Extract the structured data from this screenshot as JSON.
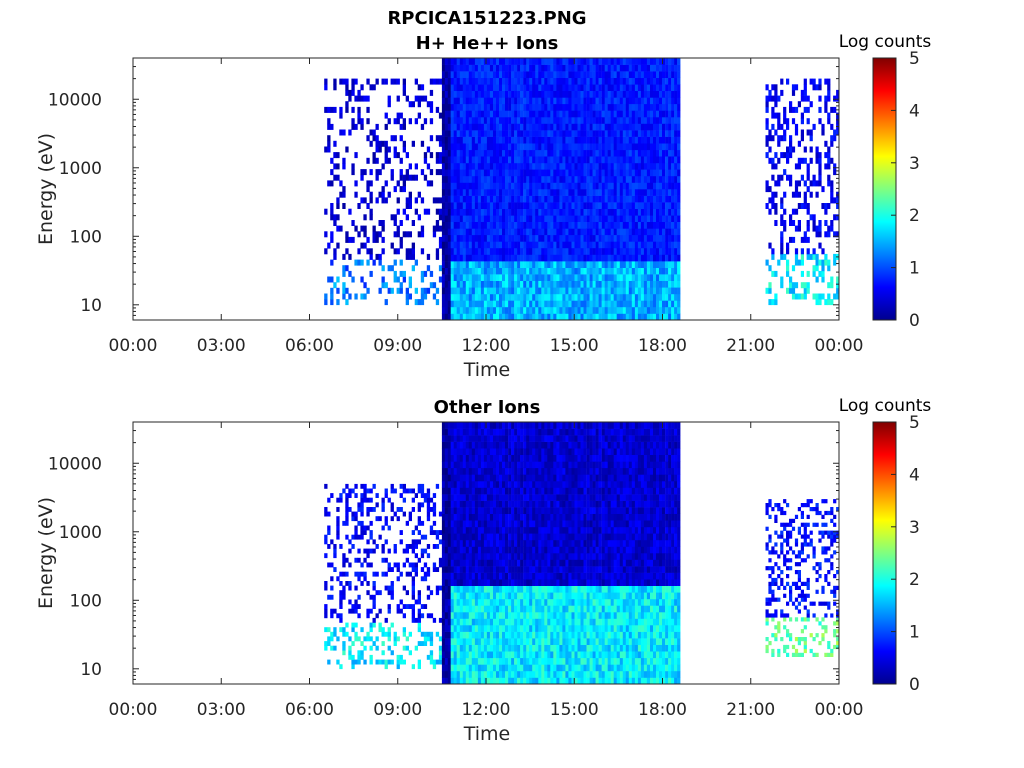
{
  "figure_title": "RPCICA151223.PNG",
  "chart_data": [
    {
      "type": "heatmap",
      "title": "H+ He++ Ions",
      "xlabel": "Time",
      "ylabel": "Energy (eV)",
      "x_ticks": [
        "00:00",
        "03:00",
        "06:00",
        "09:00",
        "12:00",
        "15:00",
        "18:00",
        "21:00",
        "00:00"
      ],
      "x_range_hours": [
        0,
        24
      ],
      "y_scale": "log",
      "y_range_eV": [
        6,
        40000
      ],
      "y_ticks": [
        10,
        100,
        1000,
        10000
      ],
      "y_tick_labels": [
        "10",
        "100",
        "1000",
        "10000"
      ],
      "colorbar": {
        "title": "Log counts",
        "range": [
          0,
          5
        ],
        "ticks": [
          "0",
          "1",
          "2",
          "3",
          "4",
          "5"
        ],
        "colormap": "jet"
      },
      "segments": [
        {
          "start_h": 6.5,
          "end_h": 10.5,
          "level": 0.4,
          "density": 0.28,
          "e_min": 10,
          "e_max": 20000,
          "low_e_max": 50,
          "low_level": 1.2
        },
        {
          "start_h": 10.5,
          "end_h": 10.8,
          "level": 0.2,
          "density": 1.0,
          "e_min": 6,
          "e_max": 40000,
          "low_e_max": 0,
          "low_level": 0
        },
        {
          "start_h": 10.8,
          "end_h": 18.6,
          "level": 0.75,
          "density": 1.0,
          "e_min": 6,
          "e_max": 40000,
          "low_e_max": 45,
          "low_level": 1.5
        },
        {
          "start_h": 21.5,
          "end_h": 24.0,
          "level": 0.55,
          "density": 0.35,
          "e_min": 10,
          "e_max": 20000,
          "low_e_max": 60,
          "low_level": 1.8
        }
      ]
    },
    {
      "type": "heatmap",
      "title": "Other Ions",
      "xlabel": "Time",
      "ylabel": "Energy (eV)",
      "x_ticks": [
        "00:00",
        "03:00",
        "06:00",
        "09:00",
        "12:00",
        "15:00",
        "18:00",
        "21:00",
        "00:00"
      ],
      "x_range_hours": [
        0,
        24
      ],
      "y_scale": "log",
      "y_range_eV": [
        6,
        40000
      ],
      "y_ticks": [
        10,
        100,
        1000,
        10000
      ],
      "y_tick_labels": [
        "10",
        "100",
        "1000",
        "10000"
      ],
      "colorbar": {
        "title": "Log counts",
        "range": [
          0,
          5
        ],
        "ticks": [
          "0",
          "1",
          "2",
          "3",
          "4",
          "5"
        ],
        "colormap": "jet"
      },
      "segments": [
        {
          "start_h": 6.5,
          "end_h": 10.5,
          "level": 0.6,
          "density": 0.3,
          "e_min": 10,
          "e_max": 5000,
          "low_e_max": 50,
          "low_level": 1.8
        },
        {
          "start_h": 10.5,
          "end_h": 10.8,
          "level": 0.2,
          "density": 1.0,
          "e_min": 6,
          "e_max": 40000,
          "low_e_max": 0,
          "low_level": 0
        },
        {
          "start_h": 10.8,
          "end_h": 18.6,
          "level": 0.4,
          "density": 1.0,
          "e_min": 6,
          "e_max": 40000,
          "low_e_max": 200,
          "low_level": 1.8
        },
        {
          "start_h": 21.5,
          "end_h": 24.0,
          "level": 0.7,
          "density": 0.35,
          "e_min": 15,
          "e_max": 3000,
          "low_e_max": 60,
          "low_level": 2.4
        }
      ]
    }
  ]
}
